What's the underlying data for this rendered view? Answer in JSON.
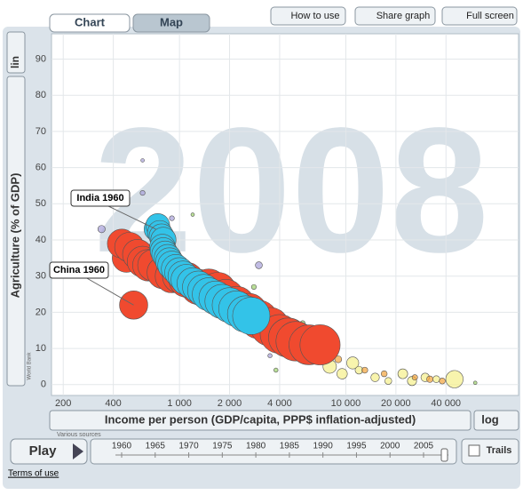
{
  "ui": {
    "tabs": [
      "Chart",
      "Map"
    ],
    "buttons": [
      "How to use",
      "Share graph",
      "Full screen"
    ],
    "y_source": "World Bank",
    "x_source": "Various sources",
    "play": "Play",
    "trails": "Trails",
    "timeline_years": [
      1960,
      1965,
      1970,
      1975,
      1980,
      1985,
      1990,
      1995,
      2000,
      2005
    ],
    "terms": "Terms of use"
  },
  "chart_data": {
    "type": "bubble",
    "year_watermark": "2008",
    "y_label": "Agriculture (% of GDP)",
    "x_label": "Income per person (GDP/capita, PPP$ inflation-adjusted)",
    "xscale": "log",
    "yscale": "lin",
    "xlim": [
      170,
      92000
    ],
    "ylim": [
      -3,
      97
    ],
    "xticks": [
      200,
      400,
      {
        "value": 1000,
        "label": "1 000"
      },
      {
        "value": 2000,
        "label": "2 000"
      },
      {
        "value": 4000,
        "label": "4 000"
      },
      {
        "value": 10000,
        "label": "10 000"
      },
      {
        "value": 20000,
        "label": "20 000"
      },
      {
        "value": 40000,
        "label": "40 000"
      }
    ],
    "yticks": [
      0,
      10,
      20,
      30,
      40,
      50,
      60,
      70,
      80,
      90
    ],
    "grid": true,
    "annotations": [
      "India 1960",
      "China 1960"
    ],
    "series": [
      {
        "color": "#f5ef8a",
        "x": [
          8000,
          9500,
          11000,
          15000,
          22000,
          30000,
          35000,
          45000,
          12000,
          18000,
          25000
        ],
        "values": [
          5,
          3,
          6,
          2,
          3,
          2,
          1.5,
          1.5,
          4,
          1,
          1
        ],
        "sizes": [
          150,
          90,
          120,
          60,
          80,
          60,
          40,
          250,
          50,
          40,
          70
        ]
      },
      {
        "color": "#f2a23a",
        "x": [
          6000,
          7000,
          9000,
          13000,
          17000,
          26000,
          32000,
          38000,
          5000
        ],
        "values": [
          10,
          9,
          7,
          4,
          3,
          2,
          1.5,
          1,
          14
        ],
        "sizes": [
          60,
          50,
          40,
          30,
          30,
          25,
          35,
          30,
          40
        ]
      },
      {
        "color": "#a6a0d8",
        "x": [
          340,
          600,
          900,
          3000,
          2600,
          4500,
          600,
          3500
        ],
        "values": [
          43,
          53,
          46,
          33,
          16,
          14,
          62,
          8
        ],
        "sizes": [
          45,
          20,
          20,
          40,
          35,
          25,
          10,
          15
        ]
      },
      {
        "color": "#9dd26c",
        "x": [
          1200,
          2800,
          5500,
          3800,
          60000
        ],
        "values": [
          47,
          27,
          17,
          4,
          0.5
        ],
        "sizes": [
          10,
          20,
          20,
          15,
          10
        ]
      },
      {
        "color": "#f04a2f",
        "x": [
          530,
          480,
          450,
          500,
          560,
          600,
          650,
          700,
          800,
          900,
          1000,
          1100,
          1300,
          1500,
          1700,
          1900,
          2200,
          2600,
          3000,
          3500,
          4000,
          4500,
          5000,
          6000,
          7000
        ],
        "values": [
          22,
          35,
          39,
          38,
          36,
          34,
          33,
          33,
          31,
          30,
          30,
          29,
          27,
          27,
          26,
          24,
          22,
          20,
          18,
          16,
          14,
          13,
          12,
          11,
          11
        ],
        "sizes": [
          660,
          670,
          690,
          720,
          750,
          780,
          820,
          850,
          880,
          920,
          960,
          1000,
          1030,
          1060,
          1090,
          1120,
          1150,
          1180,
          1210,
          1230,
          1250,
          1270,
          1290,
          1310,
          1330
        ]
      },
      {
        "color": "#33c3e8",
        "x": [
          720,
          740,
          760,
          780,
          800,
          790,
          800,
          820,
          850,
          870,
          900,
          950,
          1000,
          1050,
          1100,
          1200,
          1300,
          1400,
          1500,
          1650,
          1800,
          2000,
          2200,
          2500,
          2700
        ],
        "values": [
          43,
          44,
          42,
          41,
          40,
          38,
          37,
          36,
          35,
          34,
          33,
          32,
          31,
          30,
          29,
          28,
          27,
          26,
          25,
          24,
          23,
          22,
          21,
          19.5,
          19
        ],
        "sizes": [
          450,
          470,
          490,
          510,
          530,
          550,
          570,
          590,
          610,
          630,
          660,
          690,
          720,
          750,
          780,
          810,
          840,
          870,
          900,
          930,
          960,
          1000,
          1040,
          1100,
          1150
        ]
      }
    ]
  }
}
